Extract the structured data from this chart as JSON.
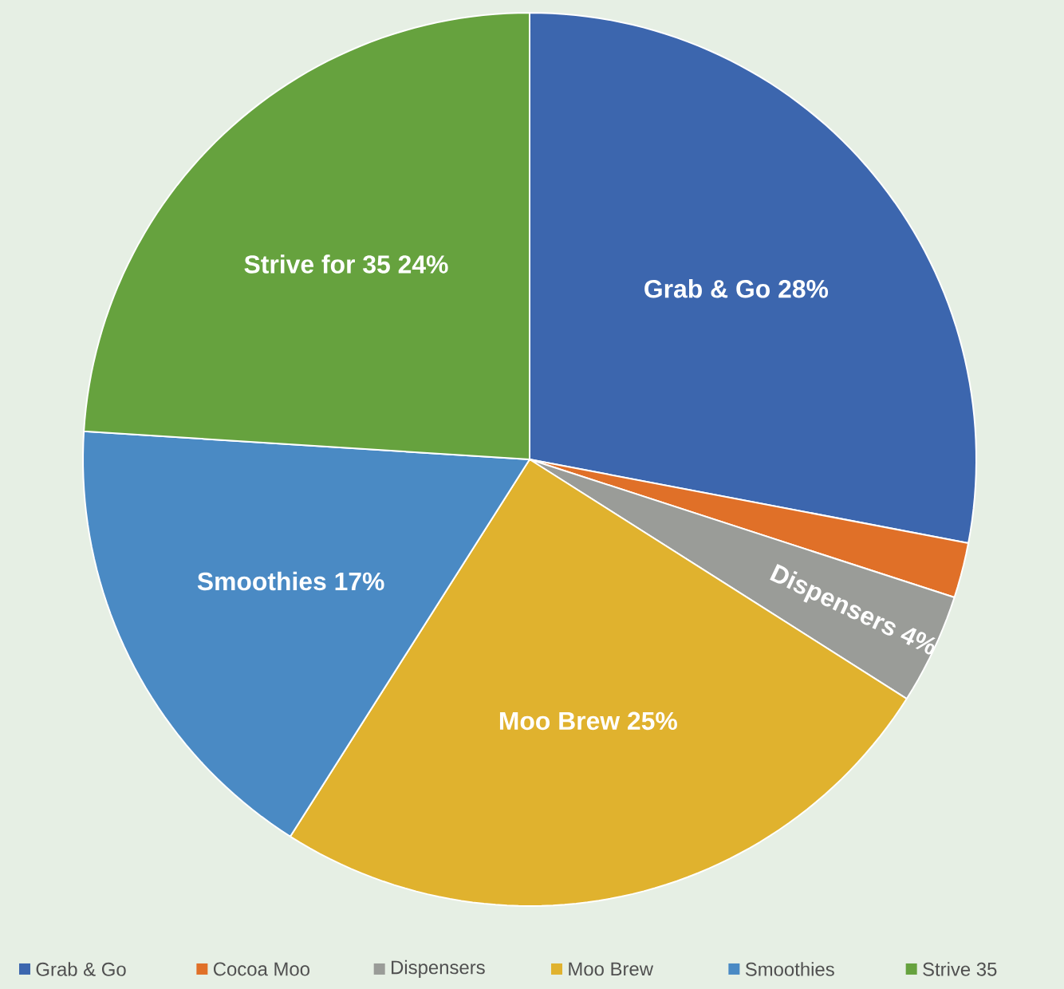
{
  "chart_data": {
    "type": "pie",
    "categories": [
      "Grab & Go",
      "Cocoa Moo",
      "Dispensers",
      "Moo Brew",
      "Smoothies",
      "Strive 35"
    ],
    "values": [
      28,
      2,
      4,
      25,
      17,
      24
    ],
    "colors": [
      "#3c66ae",
      "#e07028",
      "#9a9c98",
      "#e0b22e",
      "#4a8ac4",
      "#66a23e"
    ],
    "value_labels": [
      "Grab & Go 28%",
      null,
      "Dispensers 4%",
      "Moo Brew 25%",
      "Smoothies 17%",
      "Strive for 35 24%"
    ],
    "legend": "bottom"
  }
}
